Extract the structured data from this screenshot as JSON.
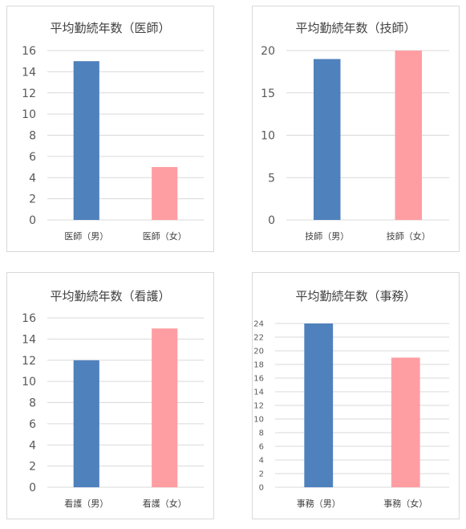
{
  "chart_data": [
    {
      "type": "bar",
      "title": "平均勤続年数（医師）",
      "categories": [
        "医師（男）",
        "医師（女）"
      ],
      "values": [
        15,
        5
      ],
      "ylim": [
        0,
        16
      ],
      "yticks": [
        0,
        2,
        4,
        6,
        8,
        10,
        12,
        14,
        16
      ],
      "colors": [
        "#4f81bd",
        "#ff9ea2"
      ],
      "grid": true
    },
    {
      "type": "bar",
      "title": "平均勤続年数（技師）",
      "categories": [
        "技師（男）",
        "技師（女）"
      ],
      "values": [
        19,
        20
      ],
      "ylim": [
        0,
        20
      ],
      "yticks": [
        0,
        5,
        10,
        15,
        20
      ],
      "colors": [
        "#4f81bd",
        "#ff9ea2"
      ],
      "grid": true
    },
    {
      "type": "bar",
      "title": "平均勤続年数（看護）",
      "categories": [
        "看護（男）",
        "看護（女）"
      ],
      "values": [
        12,
        15
      ],
      "ylim": [
        0,
        16
      ],
      "yticks": [
        0,
        2,
        4,
        6,
        8,
        10,
        12,
        14,
        16
      ],
      "colors": [
        "#4f81bd",
        "#ff9ea2"
      ],
      "grid": true
    },
    {
      "type": "bar",
      "title": "平均勤続年数（事務）",
      "categories": [
        "事務（男）",
        "事務（女）"
      ],
      "values": [
        24,
        19
      ],
      "ylim": [
        0,
        24
      ],
      "yticks": [
        0,
        2,
        4,
        6,
        8,
        10,
        12,
        14,
        16,
        18,
        20,
        22,
        24
      ],
      "colors": [
        "#4f81bd",
        "#ff9ea2"
      ],
      "grid": true
    }
  ]
}
